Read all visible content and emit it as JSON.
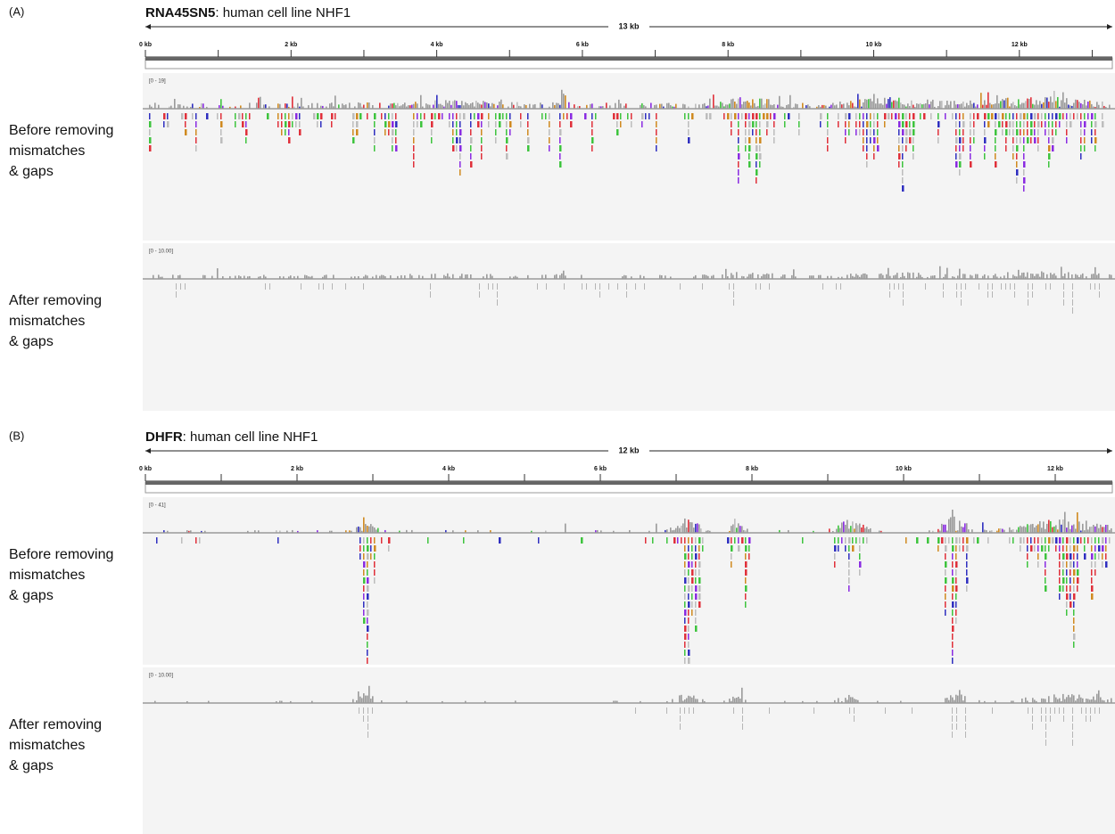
{
  "panels": [
    {
      "label": "(A)",
      "gene": "RNA45SN5",
      "title_rest": ": human cell line NHF1",
      "span": "13 kb",
      "ruler_ticks": [
        "0 kb",
        "2 kb",
        "4 kb",
        "6 kb",
        "8 kb",
        "10 kb",
        "12 kb"
      ],
      "tracks": [
        {
          "range": "[0 - 19]",
          "label": [
            "Before removing",
            "mismatches",
            "& gaps"
          ]
        },
        {
          "range": "[0 - 10.00]",
          "label": [
            "After removing",
            "mismatches",
            "& gaps"
          ]
        }
      ]
    },
    {
      "label": "(B)",
      "gene": "DHFR",
      "title_rest": ": human cell line NHF1",
      "span": "12 kb",
      "ruler_ticks": [
        "0 kb",
        "2 kb",
        "4 kb",
        "6 kb",
        "8 kb",
        "10 kb",
        "12 kb"
      ],
      "tracks": [
        {
          "range": "[0 - 41]",
          "label": [
            "Before removing",
            "mismatches",
            "& gaps"
          ]
        },
        {
          "range": "[0 - 10.00]",
          "label": [
            "After removing",
            "mismatches",
            "& gaps"
          ]
        }
      ]
    }
  ]
}
